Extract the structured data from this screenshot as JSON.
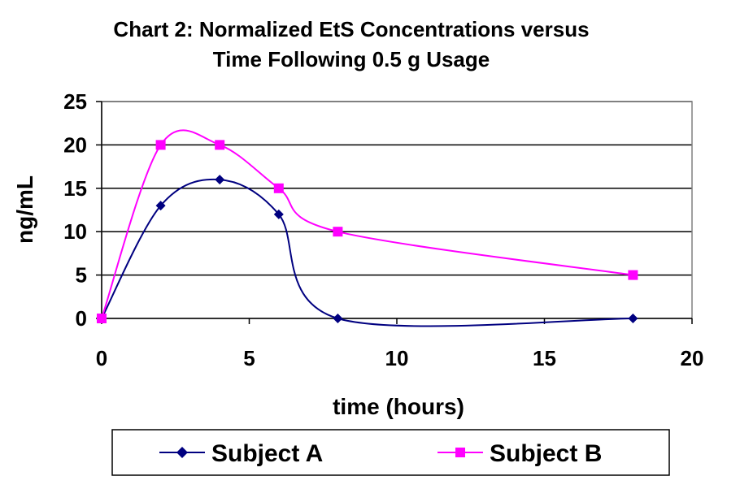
{
  "chart_data": {
    "type": "line",
    "title_lines": [
      "Chart 2:  Normalized EtS Concentrations versus",
      "Time Following 0.5 g Usage"
    ],
    "xlabel": "time (hours)",
    "ylabel": "ng/mL",
    "xlim": [
      0,
      20
    ],
    "ylim": [
      0,
      25
    ],
    "x_ticks": [
      0,
      5,
      10,
      15,
      20
    ],
    "y_ticks": [
      0,
      5,
      10,
      15,
      20,
      25
    ],
    "grid": "horizontal",
    "legend_position": "bottom",
    "series": [
      {
        "name": "Subject A",
        "color": "#000080",
        "marker": "diamond",
        "smooth": true,
        "points": [
          [
            0,
            0
          ],
          [
            2,
            13
          ],
          [
            4,
            16
          ],
          [
            6,
            12
          ],
          [
            8,
            0
          ],
          [
            18,
            0
          ]
        ]
      },
      {
        "name": "Subject B",
        "color": "#ff00ff",
        "marker": "square",
        "smooth": true,
        "points": [
          [
            0,
            0
          ],
          [
            2,
            20
          ],
          [
            4,
            20
          ],
          [
            6,
            15
          ],
          [
            8,
            10
          ],
          [
            18,
            5
          ]
        ]
      }
    ]
  }
}
